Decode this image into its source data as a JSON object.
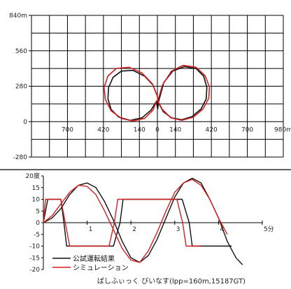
{
  "chart_data": [
    {
      "type": "line",
      "xlabel": "",
      "ylabel": "",
      "xlim": [
        -980,
        980
      ],
      "ylim": [
        -280,
        840
      ],
      "x_ticks": [
        {
          "value": -700,
          "label": "700"
        },
        {
          "value": -420,
          "label": "420"
        },
        {
          "value": -140,
          "label": "140"
        },
        {
          "value": 0,
          "label": "0"
        },
        {
          "value": 140,
          "label": "140"
        },
        {
          "value": 420,
          "label": "420"
        },
        {
          "value": 700,
          "label": "700"
        },
        {
          "value": 980,
          "label": "980m"
        }
      ],
      "y_ticks": [
        {
          "value": 840,
          "label": "840m"
        },
        {
          "value": 560,
          "label": "560"
        },
        {
          "value": 280,
          "label": "280"
        },
        {
          "value": 0,
          "label": "0"
        },
        {
          "value": -280,
          "label": "-280"
        }
      ],
      "grid": true,
      "series": [
        {
          "name": "公試運転結果",
          "color": "#111111",
          "x": [
            0,
            -35,
            -100,
            -190,
            -280,
            -345,
            -380,
            -385,
            -360,
            -300,
            -210,
            -120,
            -50,
            -8,
            2,
            10,
            50,
            120,
            210,
            300,
            360,
            385,
            380,
            340,
            270,
            190,
            110,
            45,
            8,
            0
          ],
          "y": [
            200,
            290,
            360,
            405,
            400,
            350,
            270,
            180,
            95,
            35,
            10,
            30,
            90,
            160,
            100,
            160,
            310,
            400,
            435,
            420,
            360,
            270,
            180,
            100,
            40,
            15,
            30,
            80,
            150,
            200
          ]
        },
        {
          "name": "シミュレーション",
          "color": "#d21f1f",
          "x": [
            0,
            -40,
            -120,
            -220,
            -320,
            -385,
            -415,
            -405,
            -360,
            -280,
            -190,
            -100,
            -35,
            -5,
            5,
            40,
            110,
            200,
            300,
            370,
            405,
            400,
            355,
            280,
            190,
            105,
            40,
            5,
            0
          ],
          "y": [
            200,
            300,
            385,
            430,
            420,
            360,
            270,
            175,
            85,
            25,
            5,
            25,
            90,
            165,
            170,
            290,
            400,
            445,
            430,
            365,
            275,
            185,
            100,
            35,
            10,
            30,
            95,
            160,
            200
          ]
        }
      ]
    },
    {
      "type": "line",
      "xlabel": "",
      "ylabel": "",
      "xlim": [
        0,
        5
      ],
      "ylim": [
        -20,
        20
      ],
      "x_ticks": [
        {
          "value": 1,
          "label": "1"
        },
        {
          "value": 2,
          "label": "2"
        },
        {
          "value": 3,
          "label": "3"
        },
        {
          "value": 4,
          "label": "4"
        },
        {
          "value": 5,
          "label": "5分"
        }
      ],
      "y_ticks": [
        {
          "value": 20,
          "label": "20度"
        },
        {
          "value": 15,
          "label": "15"
        },
        {
          "value": 10,
          "label": "10"
        },
        {
          "value": 5,
          "label": "5"
        },
        {
          "value": 0,
          "label": "0"
        },
        {
          "value": -5,
          "label": "-5"
        },
        {
          "value": -10,
          "label": "-10"
        },
        {
          "value": -15,
          "label": "-15"
        },
        {
          "value": -20,
          "label": "-20"
        }
      ],
      "grid": false,
      "legend": {
        "position": "bottom-left"
      },
      "series": [
        {
          "name": "公試運転結果",
          "color": "#111111",
          "x": [
            0,
            0.1,
            0.17,
            0.4,
            0.47,
            0.53,
            1.6,
            1.75,
            1.82,
            3.17,
            3.33,
            3.4,
            4.1,
            4.3
          ],
          "y": [
            0,
            10,
            10,
            10,
            0,
            -10,
            -10,
            0,
            10,
            10,
            0,
            -10,
            -10,
            -10
          ]
        },
        {
          "name": "",
          "color": "#111111",
          "x": [
            0,
            0.2,
            0.4,
            0.6,
            0.8,
            1.0,
            1.2,
            1.4,
            1.6,
            1.8,
            2.0,
            2.2,
            2.4,
            2.6,
            2.8,
            3.0,
            3.2,
            3.4,
            3.6,
            3.8,
            4.0,
            4.2,
            4.4,
            4.55
          ],
          "y": [
            0,
            2,
            6,
            12,
            16,
            17,
            15,
            9,
            1,
            -8,
            -15,
            -17,
            -14,
            -7,
            2,
            11,
            17,
            19,
            17,
            10,
            2,
            -8,
            -15,
            -18
          ]
        },
        {
          "name": "シミュレーション",
          "color": "#d21f1f",
          "x": [
            0,
            0.05,
            0.4,
            0.5,
            0.6,
            1.5,
            1.62,
            1.7,
            3.05,
            3.18,
            3.26,
            3.6
          ],
          "y": [
            0,
            10,
            10,
            0,
            -10,
            -10,
            0,
            10,
            10,
            0,
            -10,
            -10
          ]
        },
        {
          "name": "",
          "color": "#d21f1f",
          "x": [
            0,
            0.2,
            0.4,
            0.6,
            0.8,
            1.0,
            1.2,
            1.4,
            1.6,
            1.8,
            2.0,
            2.2,
            2.4,
            2.6,
            2.8,
            3.0,
            3.2,
            3.4,
            3.6,
            3.8,
            4.0,
            4.2
          ],
          "y": [
            0,
            3,
            8,
            13,
            16,
            15.5,
            12,
            5,
            -3,
            -11,
            -16,
            -17,
            -12,
            -4,
            5,
            13,
            17,
            18.5,
            16,
            10,
            2,
            -5
          ]
        }
      ]
    }
  ],
  "legend_labels": [
    "公試運転結果",
    "シミュレーション"
  ],
  "caption": "ぱしふぃっく びいなす(lpp=160m,15187GT)"
}
